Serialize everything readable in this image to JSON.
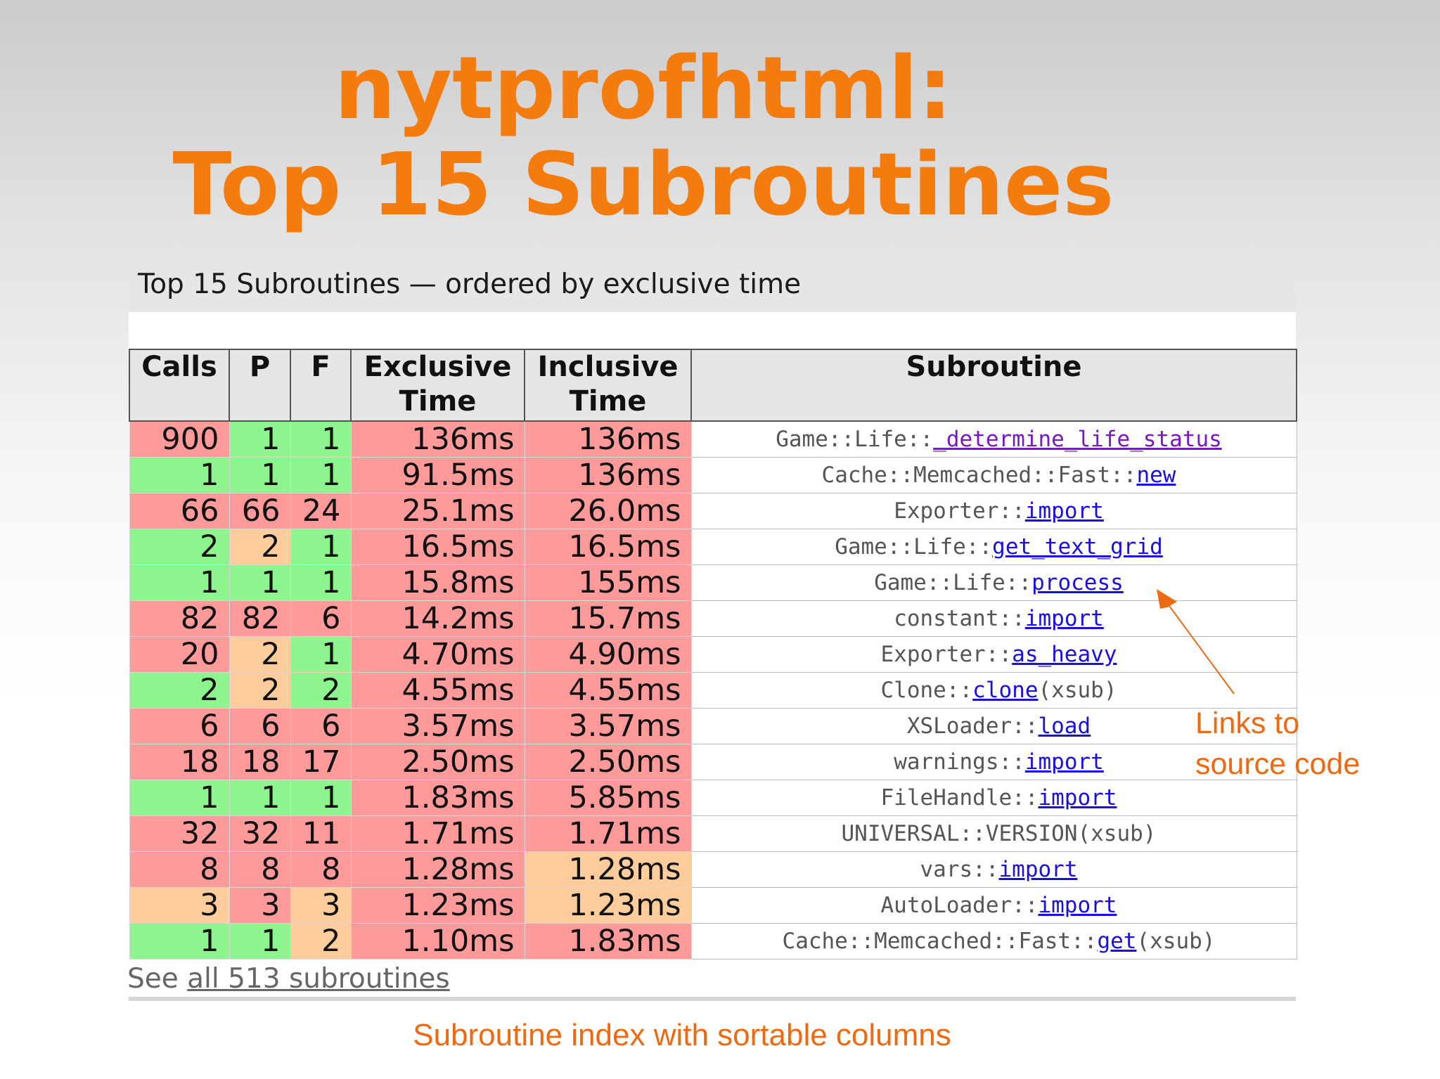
{
  "slide": {
    "title_line1": "nytprofhtml:",
    "title_line2": "Top 15 Subroutines",
    "footer": "Subroutine index with sortable columns",
    "annotation_line1": "Links to",
    "annotation_line2": "source code"
  },
  "table": {
    "caption": "Top 15 Subroutines — ordered by exclusive time",
    "headers": {
      "calls": "Calls",
      "p": "P",
      "f": "F",
      "exclusive_1": "Exclusive",
      "exclusive_2": "Time",
      "inclusive_1": "Inclusive",
      "inclusive_2": "Time",
      "subroutine": "Subroutine"
    },
    "rows": [
      {
        "calls": "900",
        "p": "1",
        "f": "1",
        "excl": "136ms",
        "incl": "136ms",
        "pkg": "Game::Life::",
        "sub": "_determine_life_status",
        "suffix": "",
        "link": true,
        "visited": true,
        "colors": [
          "red",
          "green",
          "green",
          "red",
          "red"
        ]
      },
      {
        "calls": "1",
        "p": "1",
        "f": "1",
        "excl": "91.5ms",
        "incl": "136ms",
        "pkg": "Cache::Memcached::Fast::",
        "sub": "new",
        "suffix": "",
        "link": true,
        "visited": false,
        "colors": [
          "green",
          "green",
          "green",
          "red",
          "red"
        ]
      },
      {
        "calls": "66",
        "p": "66",
        "f": "24",
        "excl": "25.1ms",
        "incl": "26.0ms",
        "pkg": "Exporter::",
        "sub": "import",
        "suffix": "",
        "link": true,
        "visited": false,
        "colors": [
          "red",
          "red",
          "red",
          "red",
          "red"
        ]
      },
      {
        "calls": "2",
        "p": "2",
        "f": "1",
        "excl": "16.5ms",
        "incl": "16.5ms",
        "pkg": "Game::Life::",
        "sub": "get_text_grid",
        "suffix": "",
        "link": true,
        "visited": false,
        "colors": [
          "green",
          "orange",
          "green",
          "red",
          "red"
        ]
      },
      {
        "calls": "1",
        "p": "1",
        "f": "1",
        "excl": "15.8ms",
        "incl": "155ms",
        "pkg": "Game::Life::",
        "sub": "process",
        "suffix": "",
        "link": true,
        "visited": false,
        "colors": [
          "green",
          "green",
          "green",
          "red",
          "red"
        ]
      },
      {
        "calls": "82",
        "p": "82",
        "f": "6",
        "excl": "14.2ms",
        "incl": "15.7ms",
        "pkg": "constant::",
        "sub": "import",
        "suffix": "",
        "link": true,
        "visited": false,
        "colors": [
          "red",
          "red",
          "red",
          "red",
          "red"
        ]
      },
      {
        "calls": "20",
        "p": "2",
        "f": "1",
        "excl": "4.70ms",
        "incl": "4.90ms",
        "pkg": "Exporter::",
        "sub": "as_heavy",
        "suffix": "",
        "link": true,
        "visited": false,
        "colors": [
          "red",
          "orange",
          "green",
          "red",
          "red"
        ]
      },
      {
        "calls": "2",
        "p": "2",
        "f": "2",
        "excl": "4.55ms",
        "incl": "4.55ms",
        "pkg": "Clone::",
        "sub": "clone",
        "suffix": "(xsub)",
        "link": true,
        "visited": false,
        "colors": [
          "green",
          "orange",
          "green",
          "red",
          "red"
        ]
      },
      {
        "calls": "6",
        "p": "6",
        "f": "6",
        "excl": "3.57ms",
        "incl": "3.57ms",
        "pkg": "XSLoader::",
        "sub": "load",
        "suffix": "",
        "link": true,
        "visited": false,
        "colors": [
          "red",
          "red",
          "red",
          "red",
          "red"
        ]
      },
      {
        "calls": "18",
        "p": "18",
        "f": "17",
        "excl": "2.50ms",
        "incl": "2.50ms",
        "pkg": "warnings::",
        "sub": "import",
        "suffix": "",
        "link": true,
        "visited": false,
        "colors": [
          "red",
          "red",
          "red",
          "red",
          "red"
        ]
      },
      {
        "calls": "1",
        "p": "1",
        "f": "1",
        "excl": "1.83ms",
        "incl": "5.85ms",
        "pkg": "FileHandle::",
        "sub": "import",
        "suffix": "",
        "link": true,
        "visited": false,
        "colors": [
          "green",
          "green",
          "green",
          "red",
          "red"
        ]
      },
      {
        "calls": "32",
        "p": "32",
        "f": "11",
        "excl": "1.71ms",
        "incl": "1.71ms",
        "pkg": "UNIVERSAL::",
        "sub": "VERSION",
        "suffix": "(xsub)",
        "link": false,
        "visited": false,
        "colors": [
          "red",
          "red",
          "red",
          "red",
          "red"
        ]
      },
      {
        "calls": "8",
        "p": "8",
        "f": "8",
        "excl": "1.28ms",
        "incl": "1.28ms",
        "pkg": "vars::",
        "sub": "import",
        "suffix": "",
        "link": true,
        "visited": false,
        "colors": [
          "red",
          "red",
          "red",
          "red",
          "orange"
        ]
      },
      {
        "calls": "3",
        "p": "3",
        "f": "3",
        "excl": "1.23ms",
        "incl": "1.23ms",
        "pkg": "AutoLoader::",
        "sub": "import",
        "suffix": "",
        "link": true,
        "visited": false,
        "colors": [
          "orange",
          "red",
          "orange",
          "red",
          "orange"
        ]
      },
      {
        "calls": "1",
        "p": "1",
        "f": "2",
        "excl": "1.10ms",
        "incl": "1.83ms",
        "pkg": "Cache::Memcached::Fast::",
        "sub": "get",
        "suffix": "(xsub)",
        "link": true,
        "visited": false,
        "colors": [
          "green",
          "green",
          "orange",
          "red",
          "red"
        ]
      }
    ],
    "see_all_prefix": "See ",
    "see_all_link": "all 513 subroutines"
  },
  "colors": {
    "title": "#f47b0e",
    "annotation": "#ee6a12",
    "cell_red": "#ff9a9a",
    "cell_green": "#8ef58e",
    "cell_orange": "#ffcd9c",
    "link": "#1a0ee0",
    "link_visited": "#7a15c9"
  }
}
